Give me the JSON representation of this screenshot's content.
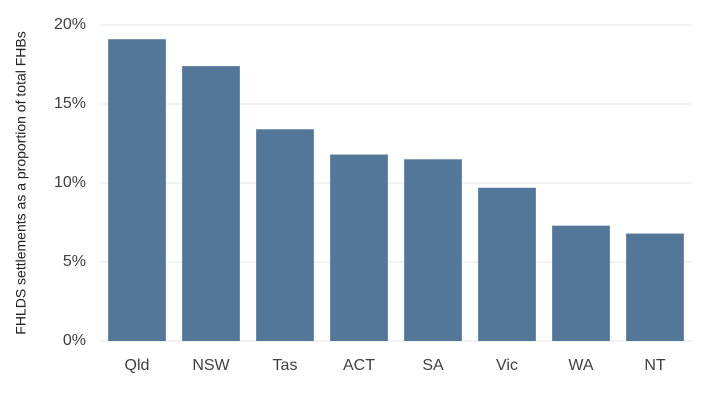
{
  "chart_data": {
    "type": "bar",
    "y_label": "FHLDS settlements as a proportion of total FHBs",
    "categories": [
      "Qld",
      "NSW",
      "Tas",
      "ACT",
      "SA",
      "Vic",
      "WA",
      "NT"
    ],
    "values": [
      19.1,
      17.4,
      13.4,
      11.8,
      11.5,
      9.7,
      7.3,
      6.8
    ],
    "color": "#537799",
    "ylim": [
      0,
      20
    ],
    "yticks": [
      {
        "value": 0,
        "label": "0%"
      },
      {
        "value": 5,
        "label": "5%"
      },
      {
        "value": 10,
        "label": "10%"
      },
      {
        "value": 15,
        "label": "15%"
      },
      {
        "value": 20,
        "label": "20%"
      }
    ],
    "grid": true
  }
}
